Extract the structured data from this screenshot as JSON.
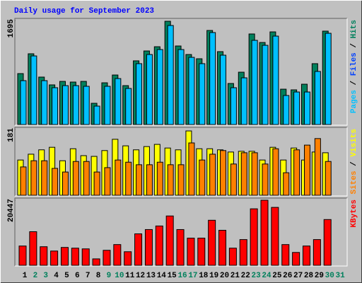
{
  "chart_data": [
    {
      "type": "bar",
      "title": "Daily usage for September 2023",
      "ylim": [
        0,
        1695
      ],
      "yticks": [
        1695
      ],
      "series": [
        {
          "name": "Hits",
          "color": "#00805C",
          "values": [
            830,
            1153,
            773,
            646,
            703,
            692,
            703,
            346,
            680,
            807,
            634,
            1038,
            1199,
            1268,
            1683,
            1280,
            1141,
            1072,
            1533,
            1188,
            669,
            853,
            1476,
            1337,
            1510,
            576,
            565,
            657,
            992,
            1522,
            null
          ]
        },
        {
          "name": "Pages",
          "color": "#00C0FF",
          "values": [
            715,
            1118,
            715,
            600,
            634,
            634,
            623,
            300,
            623,
            749,
            588,
            992,
            1141,
            1222,
            1614,
            1222,
            1095,
            992,
            1499,
            1130,
            600,
            761,
            1372,
            1291,
            1441,
            473,
            530,
            530,
            865,
            1487,
            null
          ]
        }
      ],
      "unplotted_series": [
        {
          "name": "Files",
          "color": "#0040FF"
        }
      ],
      "legend_separator": " / "
    },
    {
      "type": "bar",
      "ylim": [
        0,
        181
      ],
      "yticks": [
        181
      ],
      "series": [
        {
          "name": "Visits",
          "color": "#FFFF00",
          "values": [
            97,
            113,
            125,
            132,
            95,
            128,
            109,
            107,
            123,
            154,
            136,
            125,
            134,
            140,
            130,
            125,
            177,
            128,
            128,
            125,
            119,
            121,
            121,
            97,
            132,
            97,
            130,
            97,
            119,
            117,
            null
          ]
        },
        {
          "name": "Sites",
          "color": "#FF8000",
          "values": [
            78,
            95,
            95,
            74,
            64,
            93,
            93,
            64,
            76,
            97,
            91,
            84,
            84,
            91,
            84,
            84,
            144,
            97,
            113,
            123,
            86,
            117,
            117,
            86,
            128,
            62,
            125,
            138,
            156,
            93,
            null
          ]
        }
      ],
      "legend_separator": " / "
    },
    {
      "type": "bar",
      "ylim": [
        0,
        20447
      ],
      "yticks": [
        20447
      ],
      "series": [
        {
          "name": "KBytes",
          "color": "#FF0000",
          "values": [
            6067,
            10561,
            5842,
            4494,
            5618,
            5393,
            5168,
            2022,
            4719,
            6516,
            4269,
            9887,
            11235,
            12359,
            15504,
            11235,
            8539,
            8539,
            14156,
            11010,
            5393,
            8089,
            17751,
            20447,
            18200,
            6516,
            4045,
            6067,
            8089,
            14381,
            null
          ]
        }
      ],
      "categories": [
        "1",
        "2",
        "3",
        "4",
        "5",
        "6",
        "7",
        "8",
        "9",
        "10",
        "11",
        "12",
        "13",
        "14",
        "15",
        "16",
        "17",
        "18",
        "19",
        "20",
        "21",
        "22",
        "23",
        "24",
        "25",
        "26",
        "27",
        "28",
        "29",
        "30",
        "31"
      ],
      "category_colors": [
        "#000000",
        "#00805C",
        "#00805C",
        "#000000",
        "#000000",
        "#000000",
        "#000000",
        "#000000",
        "#00805C",
        "#00805C",
        "#000000",
        "#000000",
        "#000000",
        "#000000",
        "#000000",
        "#00805C",
        "#00805C",
        "#000000",
        "#000000",
        "#000000",
        "#000000",
        "#000000",
        "#00805C",
        "#00805C",
        "#000000",
        "#000000",
        "#000000",
        "#000000",
        "#000000",
        "#00805C",
        "#00805C"
      ]
    }
  ]
}
